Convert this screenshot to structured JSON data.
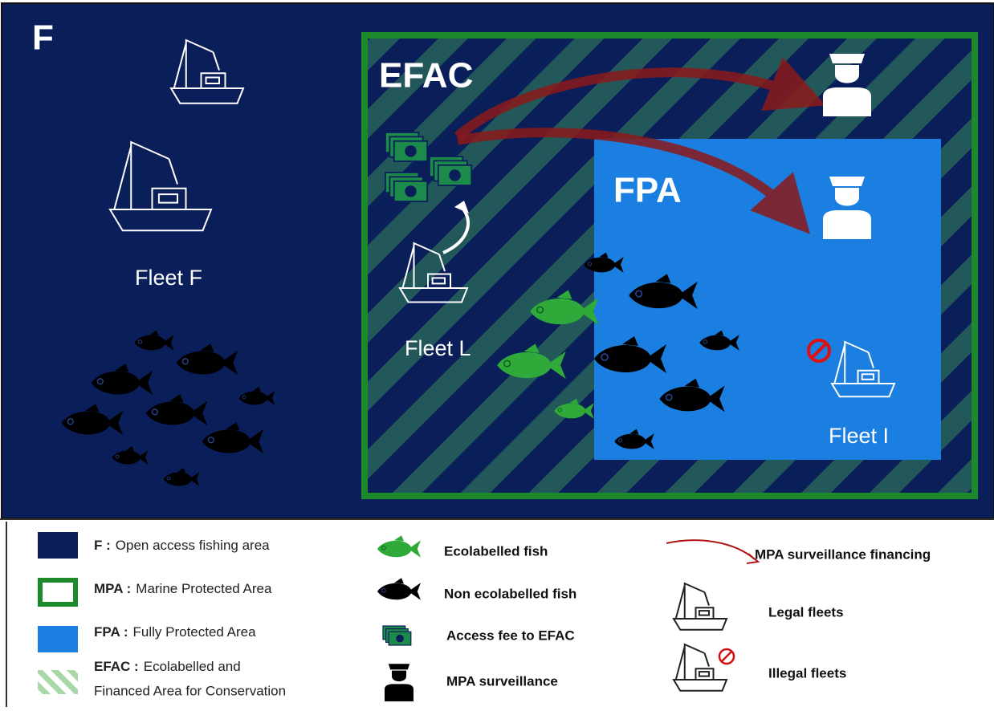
{
  "panel": {
    "label": "F",
    "zones": {
      "efac": "EFAC",
      "fpa": "FPA"
    },
    "fleets": {
      "f": "Fleet F",
      "l": "Fleet L",
      "i": "Fleet I"
    }
  },
  "legend": {
    "areas": [
      {
        "key": "F :",
        "text": "Open access fishing area"
      },
      {
        "key": "MPA :",
        "text": "Marine Protected Area"
      },
      {
        "key": "FPA :",
        "text": "Fully Protected Area"
      },
      {
        "key": "EFAC :",
        "text": "Ecolabelled and",
        "text2": "Financed Area for Conservation"
      }
    ],
    "symbols": [
      "Ecolabelled fish",
      "Non ecolabelled fish",
      "Access fee to EFAC",
      "MPA surveillance"
    ],
    "others": [
      "MPA surveillance financing",
      "Legal fleets",
      "Illegal fleets"
    ]
  }
}
